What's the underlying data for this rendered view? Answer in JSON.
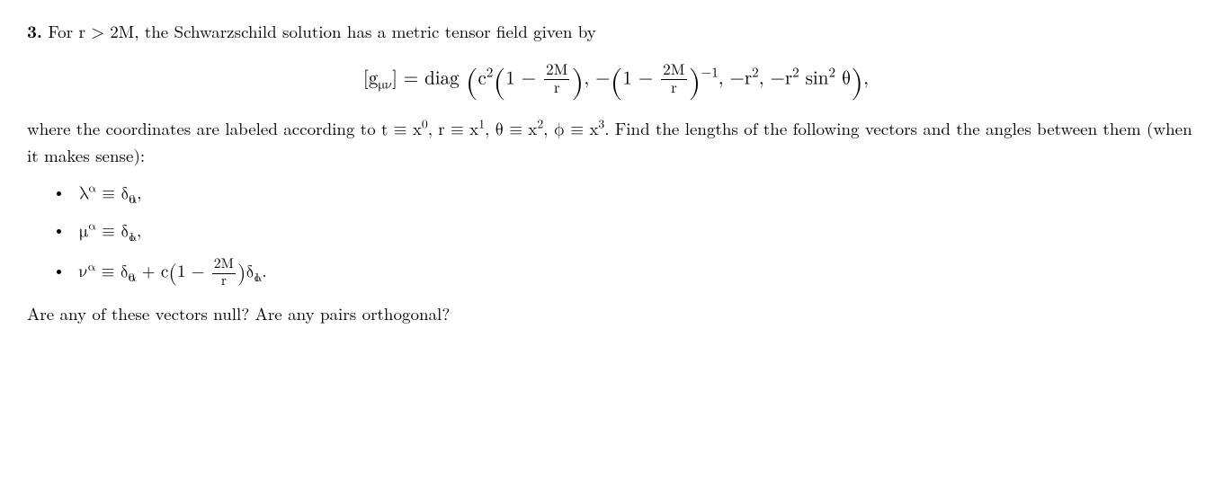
{
  "problem": {
    "number": "3.",
    "intro_a": "For ",
    "cond": "r > 2M",
    "intro_b": ", the Schwarzschild solution has a metric tensor field given by",
    "equation": {
      "lhs": "[g",
      "lhs_sub": "μν",
      "lhs_close": "] = diag ",
      "c2": "c",
      "one_minus": "1 − ",
      "twoM": "2M",
      "r": "r",
      "neg_inv": "−1",
      "neg_r2_a": ", −r",
      "neg_r2_b": ", −r",
      "sin2": " sin",
      "theta": " θ",
      "comma": ","
    },
    "coords_a": "where the coordinates are labeled according to ",
    "coords_t": "t ≡ x",
    "coords_r": "r ≡ x",
    "coords_th": "θ ≡ x",
    "coords_ph": "ϕ ≡ x",
    "coords_b": ". Find the lengths of the following vectors and the angles between them (when it makes sense):",
    "bullets": {
      "b1": {
        "lam": "λ",
        "eq": " ≡ δ",
        "sub": "0",
        "end": ","
      },
      "b2": {
        "mu": "μ",
        "eq": " ≡ δ",
        "sub": "1",
        "end": ","
      },
      "b3": {
        "nu": "ν",
        "eq": " ≡ δ",
        "sub0": "0",
        "plus_c": " + c",
        "one_minus": "1 − ",
        "twoM": "2M",
        "r": "r",
        "delta": "δ",
        "sub1": "1",
        "end": "."
      }
    },
    "closing": "Are any of these vectors null? Are any pairs orthogonal?"
  },
  "style": {
    "text_color": "#000000",
    "background": "#ffffff",
    "body_fontsize": 19,
    "eq_fontsize": 21
  }
}
